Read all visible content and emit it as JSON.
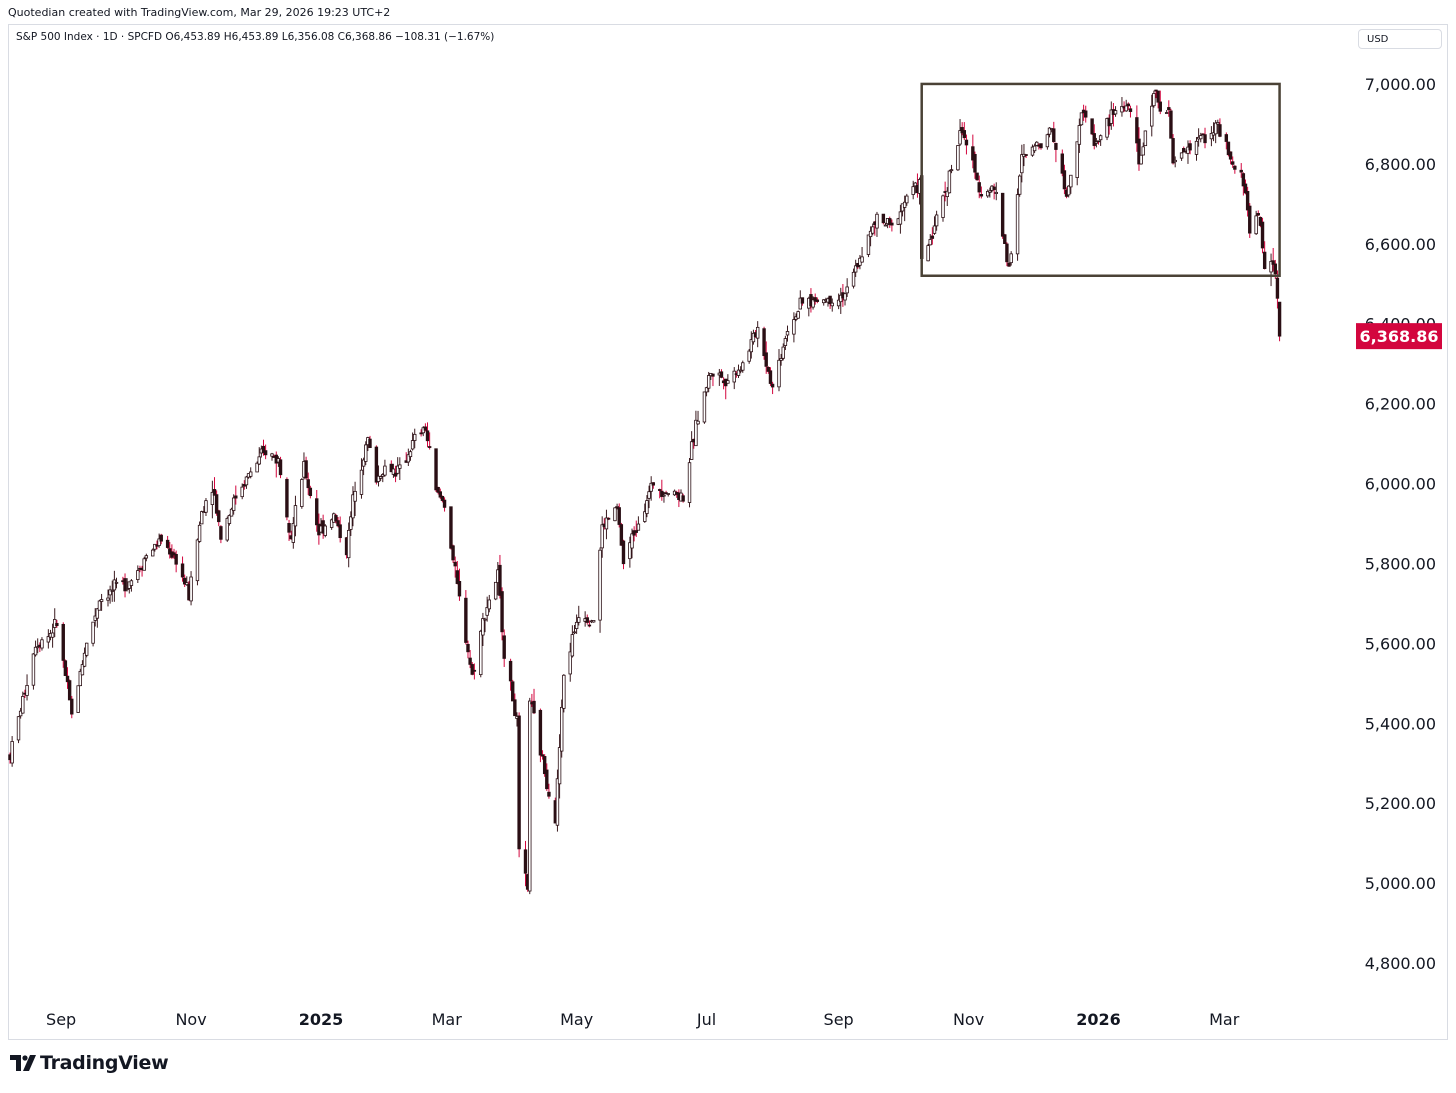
{
  "header": {
    "created_by": "Quotedian created with TradingView.com, Mar 29, 2026 19:23 UTC+2",
    "legend": "S&P 500 Index · 1D · SPCFD  O6,453.89  H6,453.89  L6,356.08  C6,368.86  −108.31 (−1.67%)",
    "currency": "USD"
  },
  "footer": {
    "logo_text": "TradingView"
  },
  "colors": {
    "up": "#ffffff",
    "down": "#2a0f14",
    "wick": "#3a1a1f",
    "accent": "#d3063e",
    "box": "#4a4236"
  },
  "chart_data": {
    "type": "candlestick",
    "title": "S&P 500 Index · 1D · SPCFD",
    "ohlc_last": {
      "open": "6,453.89",
      "high": "6,453.89",
      "low": "6,356.08",
      "close": "6,368.86",
      "change": "−108.31",
      "change_pct": "−1.67%"
    },
    "last_price_label": "6,368.86",
    "ylim": [
      4700,
      7150
    ],
    "y_ticks": [
      {
        "value": 4800,
        "label": "4,800.00"
      },
      {
        "value": 5000,
        "label": "5,000.00"
      },
      {
        "value": 5200,
        "label": "5,200.00"
      },
      {
        "value": 5400,
        "label": "5,400.00"
      },
      {
        "value": 5600,
        "label": "5,600.00"
      },
      {
        "value": 5800,
        "label": "5,800.00"
      },
      {
        "value": 6000,
        "label": "6,000.00"
      },
      {
        "value": 6200,
        "label": "6,200.00"
      },
      {
        "value": 6400,
        "label": "6,400.00"
      },
      {
        "value": 6600,
        "label": "6,600.00"
      },
      {
        "value": 6800,
        "label": "6,800.00"
      },
      {
        "value": 7000,
        "label": "7,000.00"
      }
    ],
    "x_ticks": [
      {
        "date": "2024-09-01",
        "label": "Sep",
        "bold": false
      },
      {
        "date": "2024-11-01",
        "label": "Nov",
        "bold": false
      },
      {
        "date": "2025-01-01",
        "label": "2025",
        "bold": true
      },
      {
        "date": "2025-03-01",
        "label": "Mar",
        "bold": false
      },
      {
        "date": "2025-05-01",
        "label": "May",
        "bold": false
      },
      {
        "date": "2025-07-01",
        "label": "Jul",
        "bold": false
      },
      {
        "date": "2025-09-01",
        "label": "Sep",
        "bold": false
      },
      {
        "date": "2025-11-01",
        "label": "Nov",
        "bold": false
      },
      {
        "date": "2026-01-01",
        "label": "2026",
        "bold": true
      },
      {
        "date": "2026-03-01",
        "label": "Mar",
        "bold": false
      }
    ],
    "xlim": [
      "2024-08-08",
      "2026-04-30"
    ],
    "annotation_box": {
      "x_start": "2025-10-10",
      "x_end": "2026-03-27",
      "y_low": 6520,
      "y_high": 7000
    },
    "close_series": [
      [
        "2024-08-08",
        5320
      ],
      [
        "2024-08-14",
        5460
      ],
      [
        "2024-08-20",
        5600
      ],
      [
        "2024-08-26",
        5620
      ],
      [
        "2024-08-30",
        5650
      ],
      [
        "2024-09-06",
        5420
      ],
      [
        "2024-09-12",
        5580
      ],
      [
        "2024-09-19",
        5710
      ],
      [
        "2024-09-27",
        5740
      ],
      [
        "2024-10-04",
        5760
      ],
      [
        "2024-10-11",
        5820
      ],
      [
        "2024-10-18",
        5860
      ],
      [
        "2024-10-25",
        5810
      ],
      [
        "2024-10-31",
        5720
      ],
      [
        "2024-11-06",
        5930
      ],
      [
        "2024-11-11",
        6000
      ],
      [
        "2024-11-15",
        5870
      ],
      [
        "2024-11-22",
        5970
      ],
      [
        "2024-11-29",
        6030
      ],
      [
        "2024-12-06",
        6080
      ],
      [
        "2024-12-12",
        6060
      ],
      [
        "2024-12-18",
        5870
      ],
      [
        "2024-12-24",
        6040
      ],
      [
        "2024-12-31",
        5880
      ],
      [
        "2025-01-07",
        5920
      ],
      [
        "2025-01-13",
        5830
      ],
      [
        "2025-01-17",
        6000
      ],
      [
        "2025-01-23",
        6110
      ],
      [
        "2025-01-27",
        6010
      ],
      [
        "2025-01-31",
        6040
      ],
      [
        "2025-02-07",
        6030
      ],
      [
        "2025-02-14",
        6110
      ],
      [
        "2025-02-19",
        6140
      ],
      [
        "2025-02-24",
        5980
      ],
      [
        "2025-02-28",
        5950
      ],
      [
        "2025-03-06",
        5740
      ],
      [
        "2025-03-13",
        5520
      ],
      [
        "2025-03-19",
        5680
      ],
      [
        "2025-03-25",
        5770
      ],
      [
        "2025-03-28",
        5580
      ],
      [
        "2025-04-03",
        5400
      ],
      [
        "2025-04-04",
        5070
      ],
      [
        "2025-04-08",
        4980
      ],
      [
        "2025-04-09",
        5460
      ],
      [
        "2025-04-16",
        5280
      ],
      [
        "2025-04-21",
        5160
      ],
      [
        "2025-04-25",
        5520
      ],
      [
        "2025-05-02",
        5680
      ],
      [
        "2025-05-09",
        5660
      ],
      [
        "2025-05-13",
        5890
      ],
      [
        "2025-05-20",
        5940
      ],
      [
        "2025-05-23",
        5800
      ],
      [
        "2025-05-30",
        5910
      ],
      [
        "2025-06-06",
        6000
      ],
      [
        "2025-06-13",
        5980
      ],
      [
        "2025-06-20",
        5970
      ],
      [
        "2025-06-27",
        6170
      ],
      [
        "2025-07-03",
        6280
      ],
      [
        "2025-07-11",
        6260
      ],
      [
        "2025-07-18",
        6300
      ],
      [
        "2025-07-25",
        6390
      ],
      [
        "2025-08-01",
        6240
      ],
      [
        "2025-08-08",
        6390
      ],
      [
        "2025-08-15",
        6450
      ],
      [
        "2025-08-22",
        6460
      ],
      [
        "2025-08-29",
        6460
      ],
      [
        "2025-09-05",
        6480
      ],
      [
        "2025-09-12",
        6580
      ],
      [
        "2025-09-19",
        6660
      ],
      [
        "2025-09-26",
        6640
      ],
      [
        "2025-10-03",
        6720
      ],
      [
        "2025-10-09",
        6750
      ],
      [
        "2025-10-10",
        6550
      ],
      [
        "2025-10-17",
        6660
      ],
      [
        "2025-10-24",
        6790
      ],
      [
        "2025-10-29",
        6890
      ],
      [
        "2025-11-04",
        6770
      ],
      [
        "2025-11-07",
        6730
      ],
      [
        "2025-11-13",
        6740
      ],
      [
        "2025-11-20",
        6540
      ],
      [
        "2025-11-26",
        6810
      ],
      [
        "2025-12-03",
        6850
      ],
      [
        "2025-12-10",
        6890
      ],
      [
        "2025-12-17",
        6720
      ],
      [
        "2025-12-24",
        6930
      ],
      [
        "2025-12-31",
        6850
      ],
      [
        "2026-01-08",
        6930
      ],
      [
        "2026-01-15",
        6950
      ],
      [
        "2026-01-20",
        6800
      ],
      [
        "2026-01-27",
        6980
      ],
      [
        "2026-02-03",
        6920
      ],
      [
        "2026-02-05",
        6800
      ],
      [
        "2026-02-12",
        6840
      ],
      [
        "2026-02-19",
        6870
      ],
      [
        "2026-02-26",
        6890
      ],
      [
        "2026-03-05",
        6790
      ],
      [
        "2026-03-10",
        6760
      ],
      [
        "2026-03-13",
        6640
      ],
      [
        "2026-03-17",
        6680
      ],
      [
        "2026-03-20",
        6540
      ],
      [
        "2026-03-24",
        6560
      ],
      [
        "2026-03-26",
        6477
      ],
      [
        "2026-03-27",
        6368.86
      ]
    ]
  }
}
